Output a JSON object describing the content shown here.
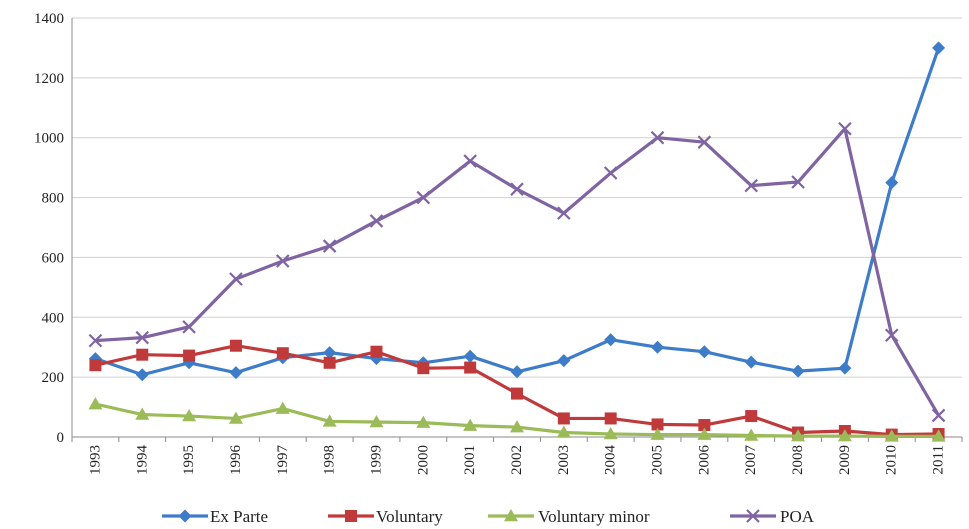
{
  "chart_data": {
    "type": "line",
    "title": "",
    "xlabel": "",
    "ylabel": "",
    "categories": [
      "1993",
      "1994",
      "1995",
      "1996",
      "1997",
      "1998",
      "1999",
      "2000",
      "2001",
      "2002",
      "2003",
      "2004",
      "2005",
      "2006",
      "2007",
      "2008",
      "2009",
      "2010",
      "2011"
    ],
    "ylim": [
      0,
      1400
    ],
    "yticks": [
      "0",
      "200",
      "400",
      "600",
      "800",
      "1000",
      "1200",
      "1400"
    ],
    "grid": true,
    "legend_position": "bottom",
    "series": [
      {
        "name": "Ex Parte",
        "color": "#3d7cc9",
        "marker": "diamond",
        "values": [
          262,
          208,
          248,
          215,
          265,
          282,
          262,
          248,
          270,
          218,
          255,
          325,
          300,
          285,
          250,
          220,
          230,
          850,
          1300
        ]
      },
      {
        "name": "Voluntary",
        "color": "#c0393b",
        "marker": "square",
        "values": [
          240,
          275,
          272,
          305,
          280,
          248,
          285,
          230,
          232,
          145,
          62,
          62,
          42,
          40,
          70,
          15,
          20,
          8,
          10
        ]
      },
      {
        "name": "Voluntary minor",
        "color": "#9bbb59",
        "marker": "triangle",
        "values": [
          110,
          75,
          70,
          62,
          95,
          52,
          50,
          48,
          38,
          33,
          15,
          10,
          8,
          8,
          5,
          3,
          3,
          2,
          2
        ]
      },
      {
        "name": "POA",
        "color": "#8064a2",
        "marker": "x",
        "values": [
          322,
          332,
          368,
          528,
          588,
          638,
          722,
          800,
          922,
          828,
          748,
          882,
          1000,
          985,
          840,
          852,
          1030,
          340,
          72
        ]
      }
    ]
  }
}
